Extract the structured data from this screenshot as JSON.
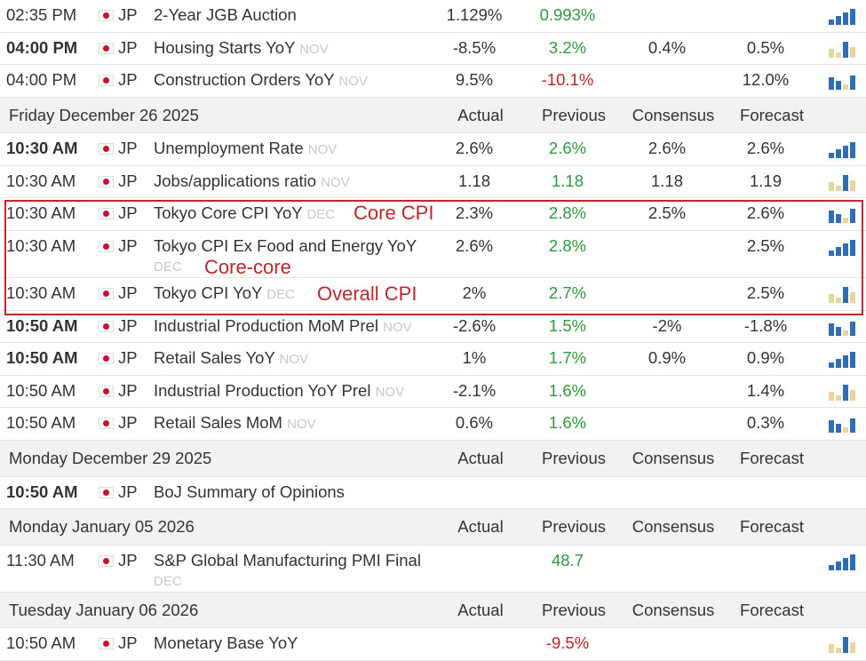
{
  "rows": [
    {
      "time": "02:35 PM",
      "time_bold": false,
      "country": "JP",
      "event": "2-Year JGB Auction",
      "actual": "1.129%",
      "previous": "0.993%",
      "previous_color": "#2e9a3e"
    },
    {
      "time": "04:00 PM",
      "time_bold": true,
      "country": "JP",
      "event": "Housing Starts YoY",
      "period": "NOV",
      "actual": "-8.5%",
      "previous": "3.2%",
      "previous_color": "#2e9a3e",
      "consensus": "0.4%",
      "forecast": "0.5%"
    },
    {
      "time": "04:00 PM",
      "time_bold": false,
      "country": "JP",
      "event": "Construction Orders YoY",
      "period": "NOV",
      "actual": "9.5%",
      "previous": "-10.1%",
      "previous_color": "#c81e1e",
      "forecast": "12.0%"
    },
    {
      "date": "Friday December 26 2025",
      "columns": [
        "Actual",
        "Previous",
        "Consensus",
        "Forecast"
      ]
    },
    {
      "time": "10:30 AM",
      "time_bold": true,
      "country": "JP",
      "event": "Unemployment Rate",
      "period": "NOV",
      "actual": "2.6%",
      "previous": "2.6%",
      "previous_color": "#2e9a3e",
      "consensus": "2.6%",
      "forecast": "2.6%"
    },
    {
      "time": "10:30 AM",
      "time_bold": false,
      "country": "JP",
      "event": "Jobs/applications ratio",
      "period": "NOV",
      "actual": "1.18",
      "previous": "1.18",
      "previous_color": "#2e9a3e",
      "consensus": "1.18",
      "forecast": "1.19"
    },
    {
      "time": "10:30 AM",
      "time_bold": false,
      "country": "JP",
      "event": "Tokyo Core CPI YoY",
      "period": "DEC",
      "actual": "2.3%",
      "previous": "2.8%",
      "previous_color": "#2e9a3e",
      "consensus": "2.5%",
      "forecast": "2.6%",
      "note": "Core CPI"
    },
    {
      "time": "10:30 AM",
      "time_bold": false,
      "country": "JP",
      "event": "Tokyo CPI Ex Food and Energy YoY",
      "period": "DEC",
      "actual": "2.6%",
      "previous": "2.8%",
      "previous_color": "#2e9a3e",
      "forecast": "2.5%",
      "note": "Core-core"
    },
    {
      "time": "10:30 AM",
      "time_bold": false,
      "country": "JP",
      "event": "Tokyo CPI YoY",
      "period": "DEC",
      "actual": "2%",
      "previous": "2.7%",
      "previous_color": "#2e9a3e",
      "forecast": "2.5%",
      "note": "Overall CPI"
    },
    {
      "time": "10:50 AM",
      "time_bold": true,
      "country": "JP",
      "event": "Industrial Production MoM Prel",
      "period": "NOV",
      "actual": "-2.6%",
      "previous": "1.5%",
      "previous_color": "#2e9a3e",
      "consensus": "-2%",
      "forecast": "-1.8%"
    },
    {
      "time": "10:50 AM",
      "time_bold": true,
      "country": "JP",
      "event": "Retail Sales YoY",
      "period": "NOV",
      "actual": "1%",
      "previous": "1.7%",
      "previous_color": "#2e9a3e",
      "consensus": "0.9%",
      "forecast": "0.9%"
    },
    {
      "time": "10:50 AM",
      "time_bold": false,
      "country": "JP",
      "event": "Industrial Production YoY Prel",
      "period": "NOV",
      "actual": "-2.1%",
      "previous": "1.6%",
      "previous_color": "#2e9a3e",
      "forecast": "1.4%"
    },
    {
      "time": "10:50 AM",
      "time_bold": false,
      "country": "JP",
      "event": "Retail Sales MoM",
      "period": "NOV",
      "actual": "0.6%",
      "previous": "1.6%",
      "previous_color": "#2e9a3e",
      "forecast": "0.3%"
    },
    {
      "date": "Monday December 29 2025",
      "columns": [
        "Actual",
        "Previous",
        "Consensus",
        "Forecast"
      ]
    },
    {
      "time": "10:50 AM",
      "time_bold": true,
      "country": "JP",
      "event": "BoJ Summary of Opinions"
    },
    {
      "date": "Monday January 05 2026",
      "columns": [
        "Actual",
        "Previous",
        "Consensus",
        "Forecast"
      ]
    },
    {
      "time": "11:30 AM",
      "time_bold": false,
      "country": "JP",
      "event": "S&P Global Manufacturing PMI Final",
      "period": "DEC",
      "previous": "48.7",
      "previous_color": "#2e9a3e"
    },
    {
      "date": "Tuesday January 06 2026",
      "columns": [
        "Actual",
        "Previous",
        "Consensus",
        "Forecast"
      ]
    },
    {
      "time": "10:50 AM",
      "time_bold": false,
      "country": "JP",
      "event": "Monetary Base YoY",
      "previous": "-9.5%",
      "previous_color": "#c81e1e"
    }
  ]
}
